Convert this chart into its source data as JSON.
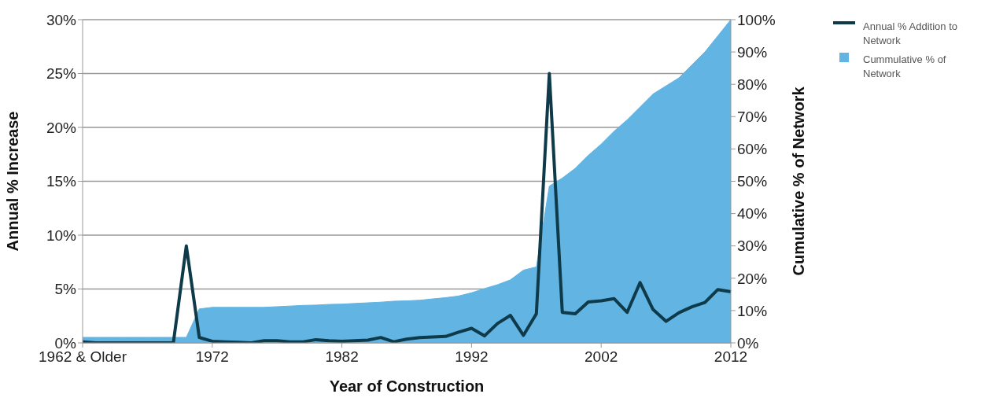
{
  "chart_data": {
    "type": "line",
    "xlabel": "Year of Construction",
    "ylabel": "Annual % Increase",
    "y2label": "Cumulative % of Network",
    "categories": [
      "1962 & Older",
      null,
      null,
      null,
      null,
      null,
      null,
      null,
      null,
      null,
      "1972",
      null,
      null,
      null,
      null,
      null,
      null,
      null,
      null,
      null,
      "1982",
      null,
      null,
      null,
      null,
      null,
      null,
      null,
      null,
      null,
      "1992",
      null,
      null,
      null,
      null,
      null,
      null,
      null,
      null,
      null,
      "2002",
      null,
      null,
      null,
      null,
      null,
      null,
      null,
      null,
      null,
      "2012"
    ],
    "series": [
      {
        "name": "Annual % Addition to Network",
        "color": "#0e3a4a",
        "values": [
          0.1,
          0,
          0,
          0,
          0,
          0,
          0,
          0,
          9.0,
          0.5,
          0.15,
          0.1,
          0.05,
          0,
          0.2,
          0.2,
          0.1,
          0.1,
          0.3,
          0.2,
          0.15,
          0.2,
          0.25,
          0.5,
          0.1,
          0.35,
          0.5,
          0.55,
          0.6,
          1.0,
          1.35,
          0.65,
          1.8,
          2.55,
          0.7,
          2.7,
          25.0,
          2.83,
          2.7,
          3.8,
          3.9,
          4.1,
          2.83,
          5.6,
          3.1,
          2.0,
          2.8,
          3.35,
          3.75,
          4.95,
          4.75
        ]
      },
      {
        "name": "Cummulative % of Network",
        "type": "area",
        "axis": "y2",
        "color": "#62b4e3",
        "values": [
          1.7,
          1.7,
          1.7,
          1.7,
          1.7,
          1.7,
          1.7,
          1.7,
          1.7,
          10.5,
          11,
          11,
          11,
          11,
          11,
          11.2,
          11.4,
          11.6,
          11.7,
          11.9,
          12,
          12.2,
          12.4,
          12.6,
          12.9,
          13,
          13.2,
          13.6,
          14,
          14.5,
          15.5,
          16.8,
          18,
          19.5,
          22.5,
          23.5,
          48.5,
          51,
          54,
          58,
          61.5,
          65.5,
          69,
          73,
          77,
          79.5,
          82,
          86,
          90,
          95,
          100
        ]
      }
    ],
    "ylim": [
      0,
      30
    ],
    "yticks": [
      {
        "value": 0,
        "label": "0%"
      },
      {
        "value": 5,
        "label": "5%"
      },
      {
        "value": 10,
        "label": "10%"
      },
      {
        "value": 15,
        "label": "15%"
      },
      {
        "value": 20,
        "label": "20%"
      },
      {
        "value": 25,
        "label": "25%"
      },
      {
        "value": 30,
        "label": "30%"
      }
    ],
    "y2lim": [
      0,
      100
    ],
    "y2ticks": [
      {
        "value": 0,
        "label": "0%"
      },
      {
        "value": 10,
        "label": "10%"
      },
      {
        "value": 20,
        "label": "20%"
      },
      {
        "value": 30,
        "label": "30%"
      },
      {
        "value": 40,
        "label": "40%"
      },
      {
        "value": 50,
        "label": "50%"
      },
      {
        "value": 60,
        "label": "60%"
      },
      {
        "value": 70,
        "label": "70%"
      },
      {
        "value": 80,
        "label": "80%"
      },
      {
        "value": 90,
        "label": "90%"
      },
      {
        "value": 100,
        "label": "100%"
      }
    ],
    "grid": "y",
    "legend": "top right",
    "marker": "none",
    "line_style": "solid"
  }
}
